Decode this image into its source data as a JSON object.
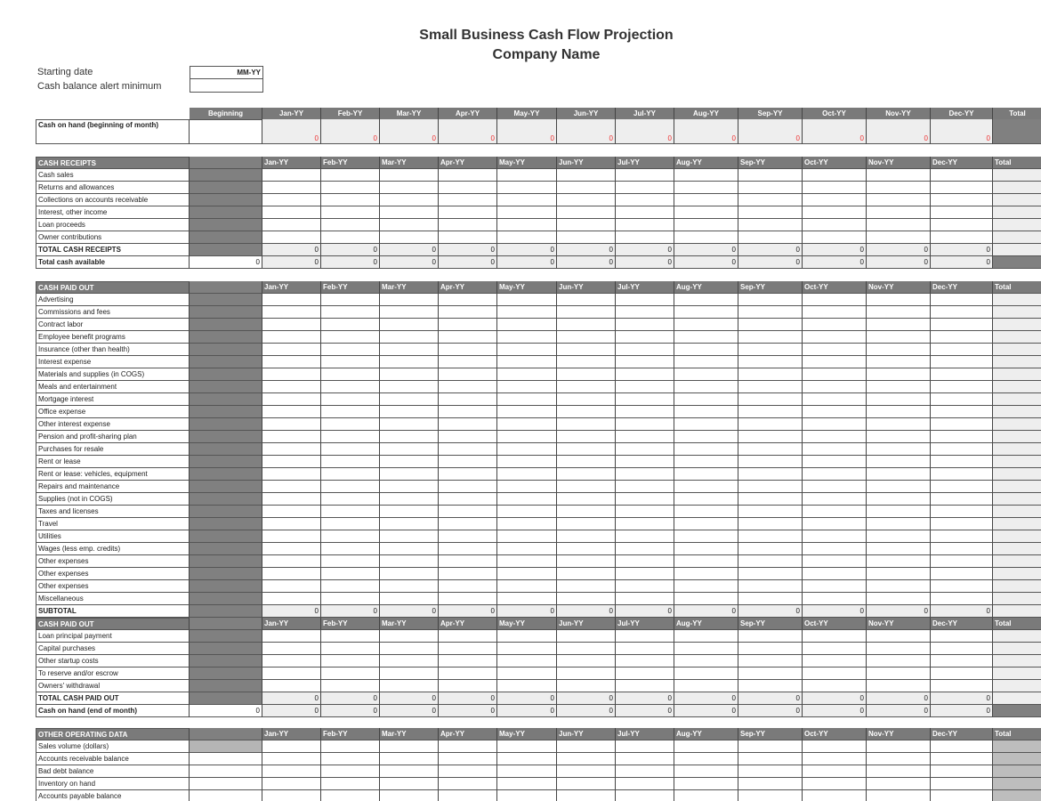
{
  "title": "Small Business Cash Flow Projection",
  "company": "Company Name",
  "settings": {
    "starting_date_label": "Starting date",
    "starting_date_value": "MM-YY",
    "alert_label": "Cash balance alert minimum",
    "alert_value": ""
  },
  "columns": {
    "beginning": "Beginning",
    "months": [
      "Jan-YY",
      "Feb-YY",
      "Mar-YY",
      "Apr-YY",
      "May-YY",
      "Jun-YY",
      "Jul-YY",
      "Aug-YY",
      "Sep-YY",
      "Oct-YY",
      "Nov-YY",
      "Dec-YY"
    ],
    "total": "Total"
  },
  "cash_on_hand_begin": {
    "label": "Cash on hand (beginning of month)",
    "value": "0"
  },
  "receipts": {
    "header": "CASH RECEIPTS",
    "items": [
      "Cash sales",
      "Returns and allowances",
      "Collections on accounts receivable",
      "Interest, other income",
      "Loan proceeds",
      "Owner contributions"
    ],
    "total_label": "TOTAL CASH RECEIPTS",
    "available_label": "Total cash available",
    "zero": "0"
  },
  "paid_out": {
    "header": "CASH PAID OUT",
    "items": [
      "Advertising",
      "Commissions and fees",
      "Contract labor",
      "Employee benefit programs",
      "Insurance (other than health)",
      "Interest expense",
      "Materials and supplies (in COGS)",
      "Meals and entertainment",
      "Mortgage interest",
      "Office expense",
      "Other interest expense",
      "Pension and profit-sharing plan",
      "Purchases for resale",
      "Rent or lease",
      "Rent or lease: vehicles, equipment",
      "Repairs and maintenance",
      "Supplies (not in COGS)",
      "Taxes and licenses",
      "Travel",
      "Utilities",
      "Wages (less emp. credits)",
      "Other expenses",
      "Other expenses",
      "Other expenses",
      "Miscellaneous"
    ],
    "subtotal_label": "SUBTOTAL",
    "header2": "CASH PAID OUT",
    "items2": [
      "Loan principal payment",
      "Capital purchases",
      "Other startup costs",
      "To reserve and/or escrow",
      "Owners' withdrawal"
    ],
    "total_label": "TOTAL CASH PAID OUT",
    "end_label": "Cash on hand (end of month)",
    "zero": "0"
  },
  "other": {
    "header": "OTHER OPERATING DATA",
    "items": [
      "Sales volume (dollars)",
      "Accounts receivable balance",
      "Bad debt balance",
      "Inventory on hand",
      "Accounts payable balance"
    ]
  },
  "colors": {
    "header": "#7a7a7a",
    "shaded": "#808080",
    "light": "#eeeeee",
    "negative_zero": "#e33333"
  }
}
